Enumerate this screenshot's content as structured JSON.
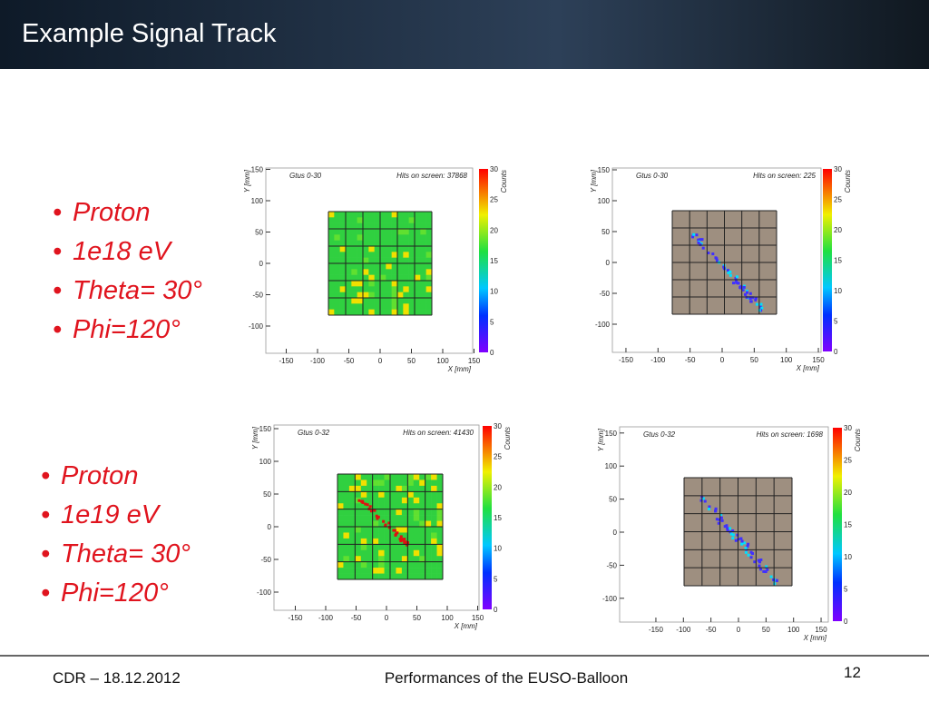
{
  "header": {
    "title": "Example Signal Track"
  },
  "groups": [
    {
      "bullets": [
        "Proton",
        "1e18 eV",
        "Theta= 30°",
        "Phi=120°"
      ]
    },
    {
      "bullets": [
        "Proton",
        "1e19 eV",
        "Theta= 30°",
        "Phi=120°"
      ]
    }
  ],
  "plots": [
    {
      "title": "Gtus 0-30",
      "hits": "Hits on screen: 37868",
      "xlabel": "X [mm]",
      "ylabel": "Y [mm]",
      "zlabel": "Counts",
      "xticks": [
        -150,
        -100,
        -50,
        0,
        50,
        100,
        150
      ],
      "yticks": [
        150,
        100,
        50,
        0,
        -50,
        -100
      ],
      "zticks": [
        0,
        5,
        10,
        15,
        20,
        25,
        30
      ]
    },
    {
      "title": "Gtus 0-30",
      "hits": "Hits on screen: 225",
      "xlabel": "X [mm]",
      "ylabel": "Y [mm]",
      "zlabel": "Counts",
      "xticks": [
        -150,
        -100,
        -50,
        0,
        50,
        100,
        150
      ],
      "yticks": [
        150,
        100,
        50,
        0,
        -50,
        -100
      ],
      "zticks": [
        0,
        5,
        10,
        15,
        20,
        25,
        30
      ]
    },
    {
      "title": "Gtus 0-32",
      "hits": "Hits on screen: 41430",
      "xlabel": "X [mm]",
      "ylabel": "Y [mm]",
      "zlabel": "Counts",
      "xticks": [
        -150,
        -100,
        -50,
        0,
        50,
        100,
        150
      ],
      "yticks": [
        150,
        100,
        50,
        0,
        -50,
        -100
      ],
      "zticks": [
        0,
        5,
        10,
        15,
        20,
        25,
        30
      ]
    },
    {
      "title": "Gtus 0-32",
      "hits": "Hits on screen: 1698",
      "xlabel": "X [mm]",
      "ylabel": "Y [mm]",
      "zlabel": "Counts",
      "xticks": [
        -150,
        -100,
        -50,
        0,
        50,
        100,
        150
      ],
      "yticks": [
        150,
        100,
        50,
        0,
        -50,
        -100
      ],
      "zticks": [
        0,
        5,
        10,
        15,
        20,
        25,
        30
      ]
    }
  ],
  "footer": {
    "left": "CDR – 18.12.2012",
    "center": "Performances of the EUSO-Balloon",
    "page": "12"
  }
}
